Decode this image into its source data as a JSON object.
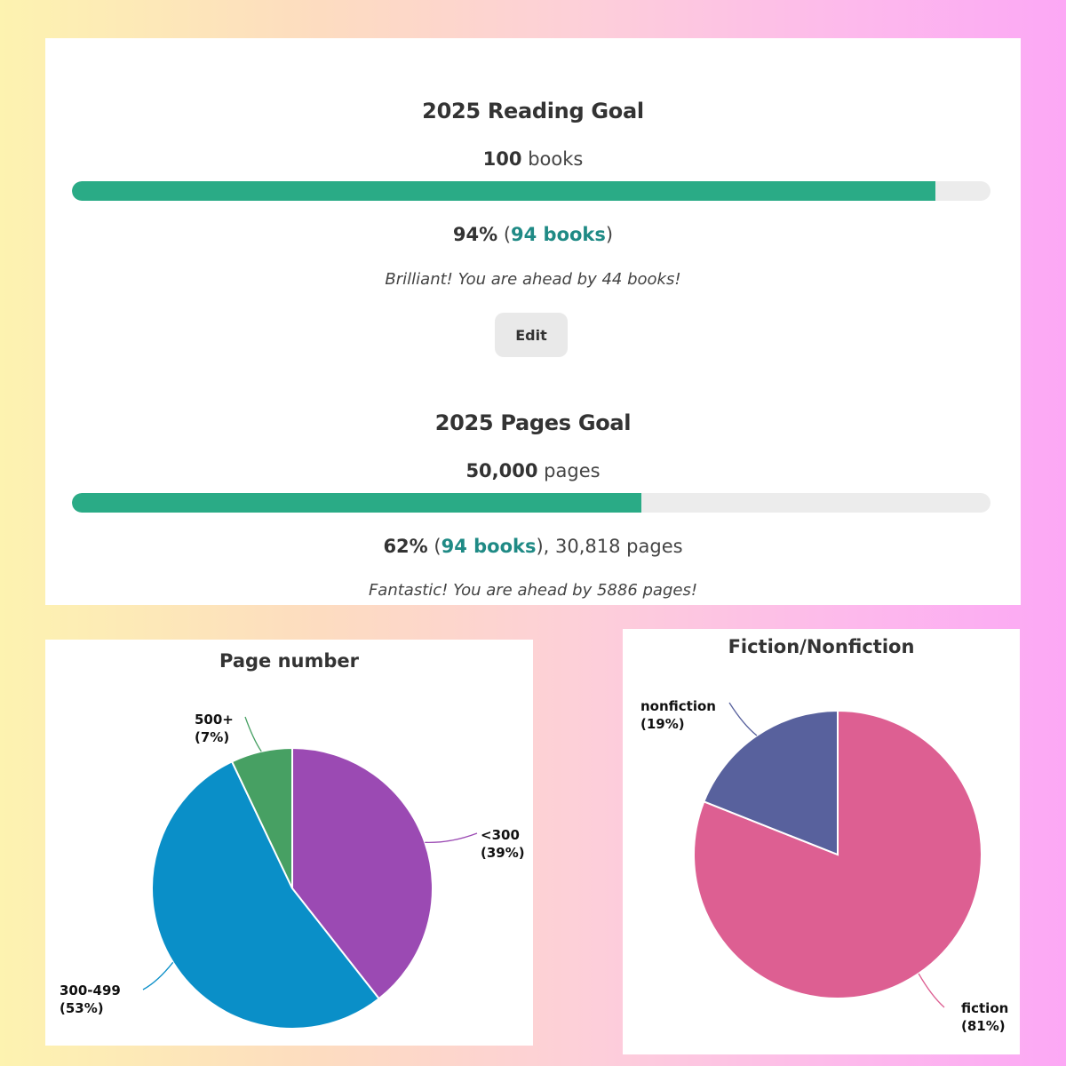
{
  "reading_goal": {
    "title": "2025 Reading Goal",
    "target_number": "100",
    "target_unit": "books",
    "percent": "94%",
    "books_link": "94 books",
    "progress_fraction": 0.94,
    "message": "Brilliant! You are ahead by 44 books!",
    "edit_label": "Edit"
  },
  "pages_goal": {
    "title": "2025 Pages Goal",
    "target_number": "50,000",
    "target_unit": "pages",
    "percent": "62%",
    "books_link": "94 books",
    "pages_read": "30,818 pages",
    "progress_fraction": 0.62,
    "message": "Fantastic! You are ahead by 5886 pages!"
  },
  "colors": {
    "progress_fill": "#2aab86",
    "progress_track": "#ececec",
    "link": "#1f8a85"
  },
  "chart_data": [
    {
      "type": "pie",
      "title": "Page number",
      "slices": [
        {
          "label": "<300",
          "percent_label": "(39%)",
          "value": 39,
          "color": "#9b4ab3"
        },
        {
          "label": "300-499",
          "percent_label": "(53%)",
          "value": 53,
          "color": "#0a8fc8"
        },
        {
          "label": "500+",
          "percent_label": "(7%)",
          "value": 7,
          "color": "#47a063"
        }
      ]
    },
    {
      "type": "pie",
      "title": "Fiction/Nonfiction",
      "slices": [
        {
          "label": "fiction",
          "percent_label": "(81%)",
          "value": 81,
          "color": "#dd5f92"
        },
        {
          "label": "nonfiction",
          "percent_label": "(19%)",
          "value": 19,
          "color": "#58619d"
        }
      ]
    }
  ]
}
